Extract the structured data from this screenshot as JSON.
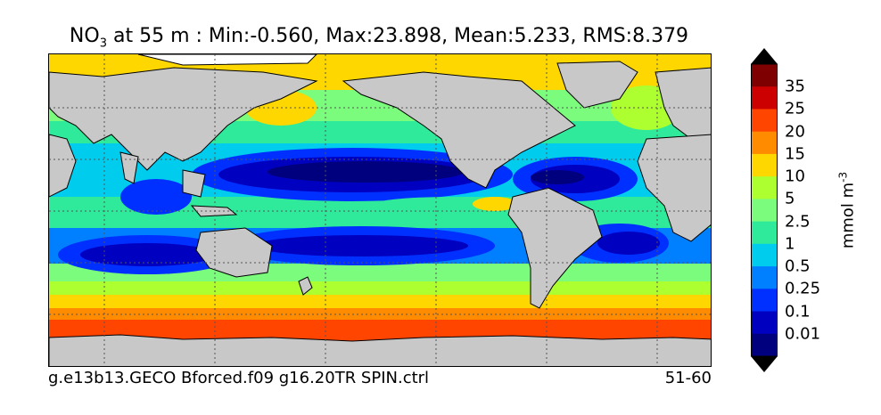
{
  "title": {
    "species": "NO",
    "subscript": "3",
    "text": " at 55 m : Min:-0.560, Max:23.898, Mean:5.233, RMS:8.379"
  },
  "footer": {
    "case_name": "g.e13b13.GECO Bforced.f09 g16.20TR SPIN.ctrl",
    "years": "51-60"
  },
  "colorbar": {
    "units": "mmol m",
    "units_exponent": "-3",
    "tick_labels": [
      "35",
      "25",
      "20",
      "15",
      "10",
      "5",
      "2.5",
      "1",
      "0.5",
      "0.25",
      "0.1",
      "0.01"
    ],
    "colors": [
      "#7f0000",
      "#cc0000",
      "#ff4500",
      "#ff8c00",
      "#ffd700",
      "#adff2f",
      "#7cfc7c",
      "#2eea9a",
      "#00ccee",
      "#0080ff",
      "#0030ff",
      "#0000c0",
      "#00007f"
    ]
  },
  "map": {
    "land_color": "#c8c8c8",
    "gridlines": "dotted"
  }
}
